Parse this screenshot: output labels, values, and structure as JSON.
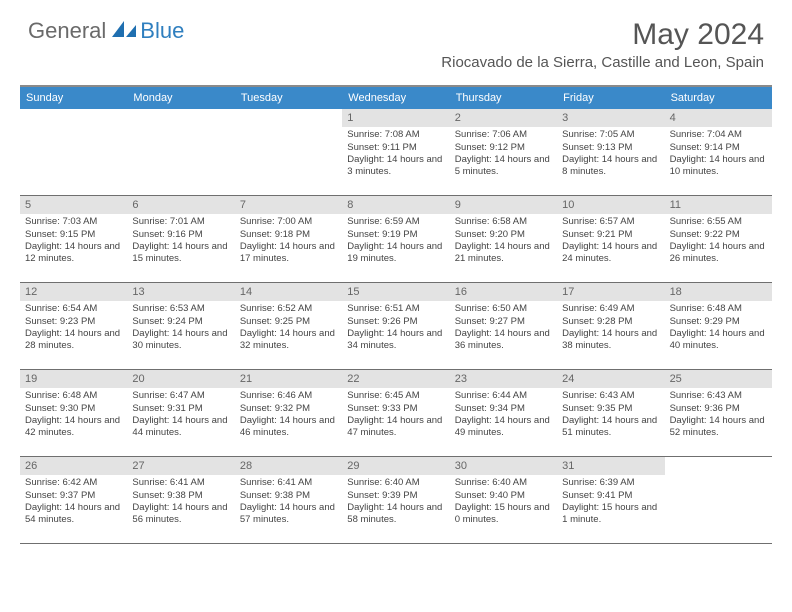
{
  "logo": {
    "text1": "General",
    "text2": "Blue"
  },
  "title": "May 2024",
  "location": "Riocavado de la Sierra, Castille and Leon, Spain",
  "colors": {
    "header_band": "#3a89c9",
    "day_band": "#e3e3e3",
    "rule": "#6f6f6f",
    "text": "#444444",
    "title_text": "#555555"
  },
  "daysOfWeek": [
    "Sunday",
    "Monday",
    "Tuesday",
    "Wednesday",
    "Thursday",
    "Friday",
    "Saturday"
  ],
  "weeks": [
    [
      {
        "blank": true
      },
      {
        "blank": true
      },
      {
        "blank": true
      },
      {
        "day": "1",
        "sunrise": "7:08 AM",
        "sunset": "9:11 PM",
        "daylight": "14 hours and 3 minutes."
      },
      {
        "day": "2",
        "sunrise": "7:06 AM",
        "sunset": "9:12 PM",
        "daylight": "14 hours and 5 minutes."
      },
      {
        "day": "3",
        "sunrise": "7:05 AM",
        "sunset": "9:13 PM",
        "daylight": "14 hours and 8 minutes."
      },
      {
        "day": "4",
        "sunrise": "7:04 AM",
        "sunset": "9:14 PM",
        "daylight": "14 hours and 10 minutes."
      }
    ],
    [
      {
        "day": "5",
        "sunrise": "7:03 AM",
        "sunset": "9:15 PM",
        "daylight": "14 hours and 12 minutes."
      },
      {
        "day": "6",
        "sunrise": "7:01 AM",
        "sunset": "9:16 PM",
        "daylight": "14 hours and 15 minutes."
      },
      {
        "day": "7",
        "sunrise": "7:00 AM",
        "sunset": "9:18 PM",
        "daylight": "14 hours and 17 minutes."
      },
      {
        "day": "8",
        "sunrise": "6:59 AM",
        "sunset": "9:19 PM",
        "daylight": "14 hours and 19 minutes."
      },
      {
        "day": "9",
        "sunrise": "6:58 AM",
        "sunset": "9:20 PM",
        "daylight": "14 hours and 21 minutes."
      },
      {
        "day": "10",
        "sunrise": "6:57 AM",
        "sunset": "9:21 PM",
        "daylight": "14 hours and 24 minutes."
      },
      {
        "day": "11",
        "sunrise": "6:55 AM",
        "sunset": "9:22 PM",
        "daylight": "14 hours and 26 minutes."
      }
    ],
    [
      {
        "day": "12",
        "sunrise": "6:54 AM",
        "sunset": "9:23 PM",
        "daylight": "14 hours and 28 minutes."
      },
      {
        "day": "13",
        "sunrise": "6:53 AM",
        "sunset": "9:24 PM",
        "daylight": "14 hours and 30 minutes."
      },
      {
        "day": "14",
        "sunrise": "6:52 AM",
        "sunset": "9:25 PM",
        "daylight": "14 hours and 32 minutes."
      },
      {
        "day": "15",
        "sunrise": "6:51 AM",
        "sunset": "9:26 PM",
        "daylight": "14 hours and 34 minutes."
      },
      {
        "day": "16",
        "sunrise": "6:50 AM",
        "sunset": "9:27 PM",
        "daylight": "14 hours and 36 minutes."
      },
      {
        "day": "17",
        "sunrise": "6:49 AM",
        "sunset": "9:28 PM",
        "daylight": "14 hours and 38 minutes."
      },
      {
        "day": "18",
        "sunrise": "6:48 AM",
        "sunset": "9:29 PM",
        "daylight": "14 hours and 40 minutes."
      }
    ],
    [
      {
        "day": "19",
        "sunrise": "6:48 AM",
        "sunset": "9:30 PM",
        "daylight": "14 hours and 42 minutes."
      },
      {
        "day": "20",
        "sunrise": "6:47 AM",
        "sunset": "9:31 PM",
        "daylight": "14 hours and 44 minutes."
      },
      {
        "day": "21",
        "sunrise": "6:46 AM",
        "sunset": "9:32 PM",
        "daylight": "14 hours and 46 minutes."
      },
      {
        "day": "22",
        "sunrise": "6:45 AM",
        "sunset": "9:33 PM",
        "daylight": "14 hours and 47 minutes."
      },
      {
        "day": "23",
        "sunrise": "6:44 AM",
        "sunset": "9:34 PM",
        "daylight": "14 hours and 49 minutes."
      },
      {
        "day": "24",
        "sunrise": "6:43 AM",
        "sunset": "9:35 PM",
        "daylight": "14 hours and 51 minutes."
      },
      {
        "day": "25",
        "sunrise": "6:43 AM",
        "sunset": "9:36 PM",
        "daylight": "14 hours and 52 minutes."
      }
    ],
    [
      {
        "day": "26",
        "sunrise": "6:42 AM",
        "sunset": "9:37 PM",
        "daylight": "14 hours and 54 minutes."
      },
      {
        "day": "27",
        "sunrise": "6:41 AM",
        "sunset": "9:38 PM",
        "daylight": "14 hours and 56 minutes."
      },
      {
        "day": "28",
        "sunrise": "6:41 AM",
        "sunset": "9:38 PM",
        "daylight": "14 hours and 57 minutes."
      },
      {
        "day": "29",
        "sunrise": "6:40 AM",
        "sunset": "9:39 PM",
        "daylight": "14 hours and 58 minutes."
      },
      {
        "day": "30",
        "sunrise": "6:40 AM",
        "sunset": "9:40 PM",
        "daylight": "15 hours and 0 minutes."
      },
      {
        "day": "31",
        "sunrise": "6:39 AM",
        "sunset": "9:41 PM",
        "daylight": "15 hours and 1 minute."
      },
      {
        "blank": true
      }
    ]
  ],
  "labels": {
    "sunrise": "Sunrise:",
    "sunset": "Sunset:",
    "daylight": "Daylight:"
  }
}
